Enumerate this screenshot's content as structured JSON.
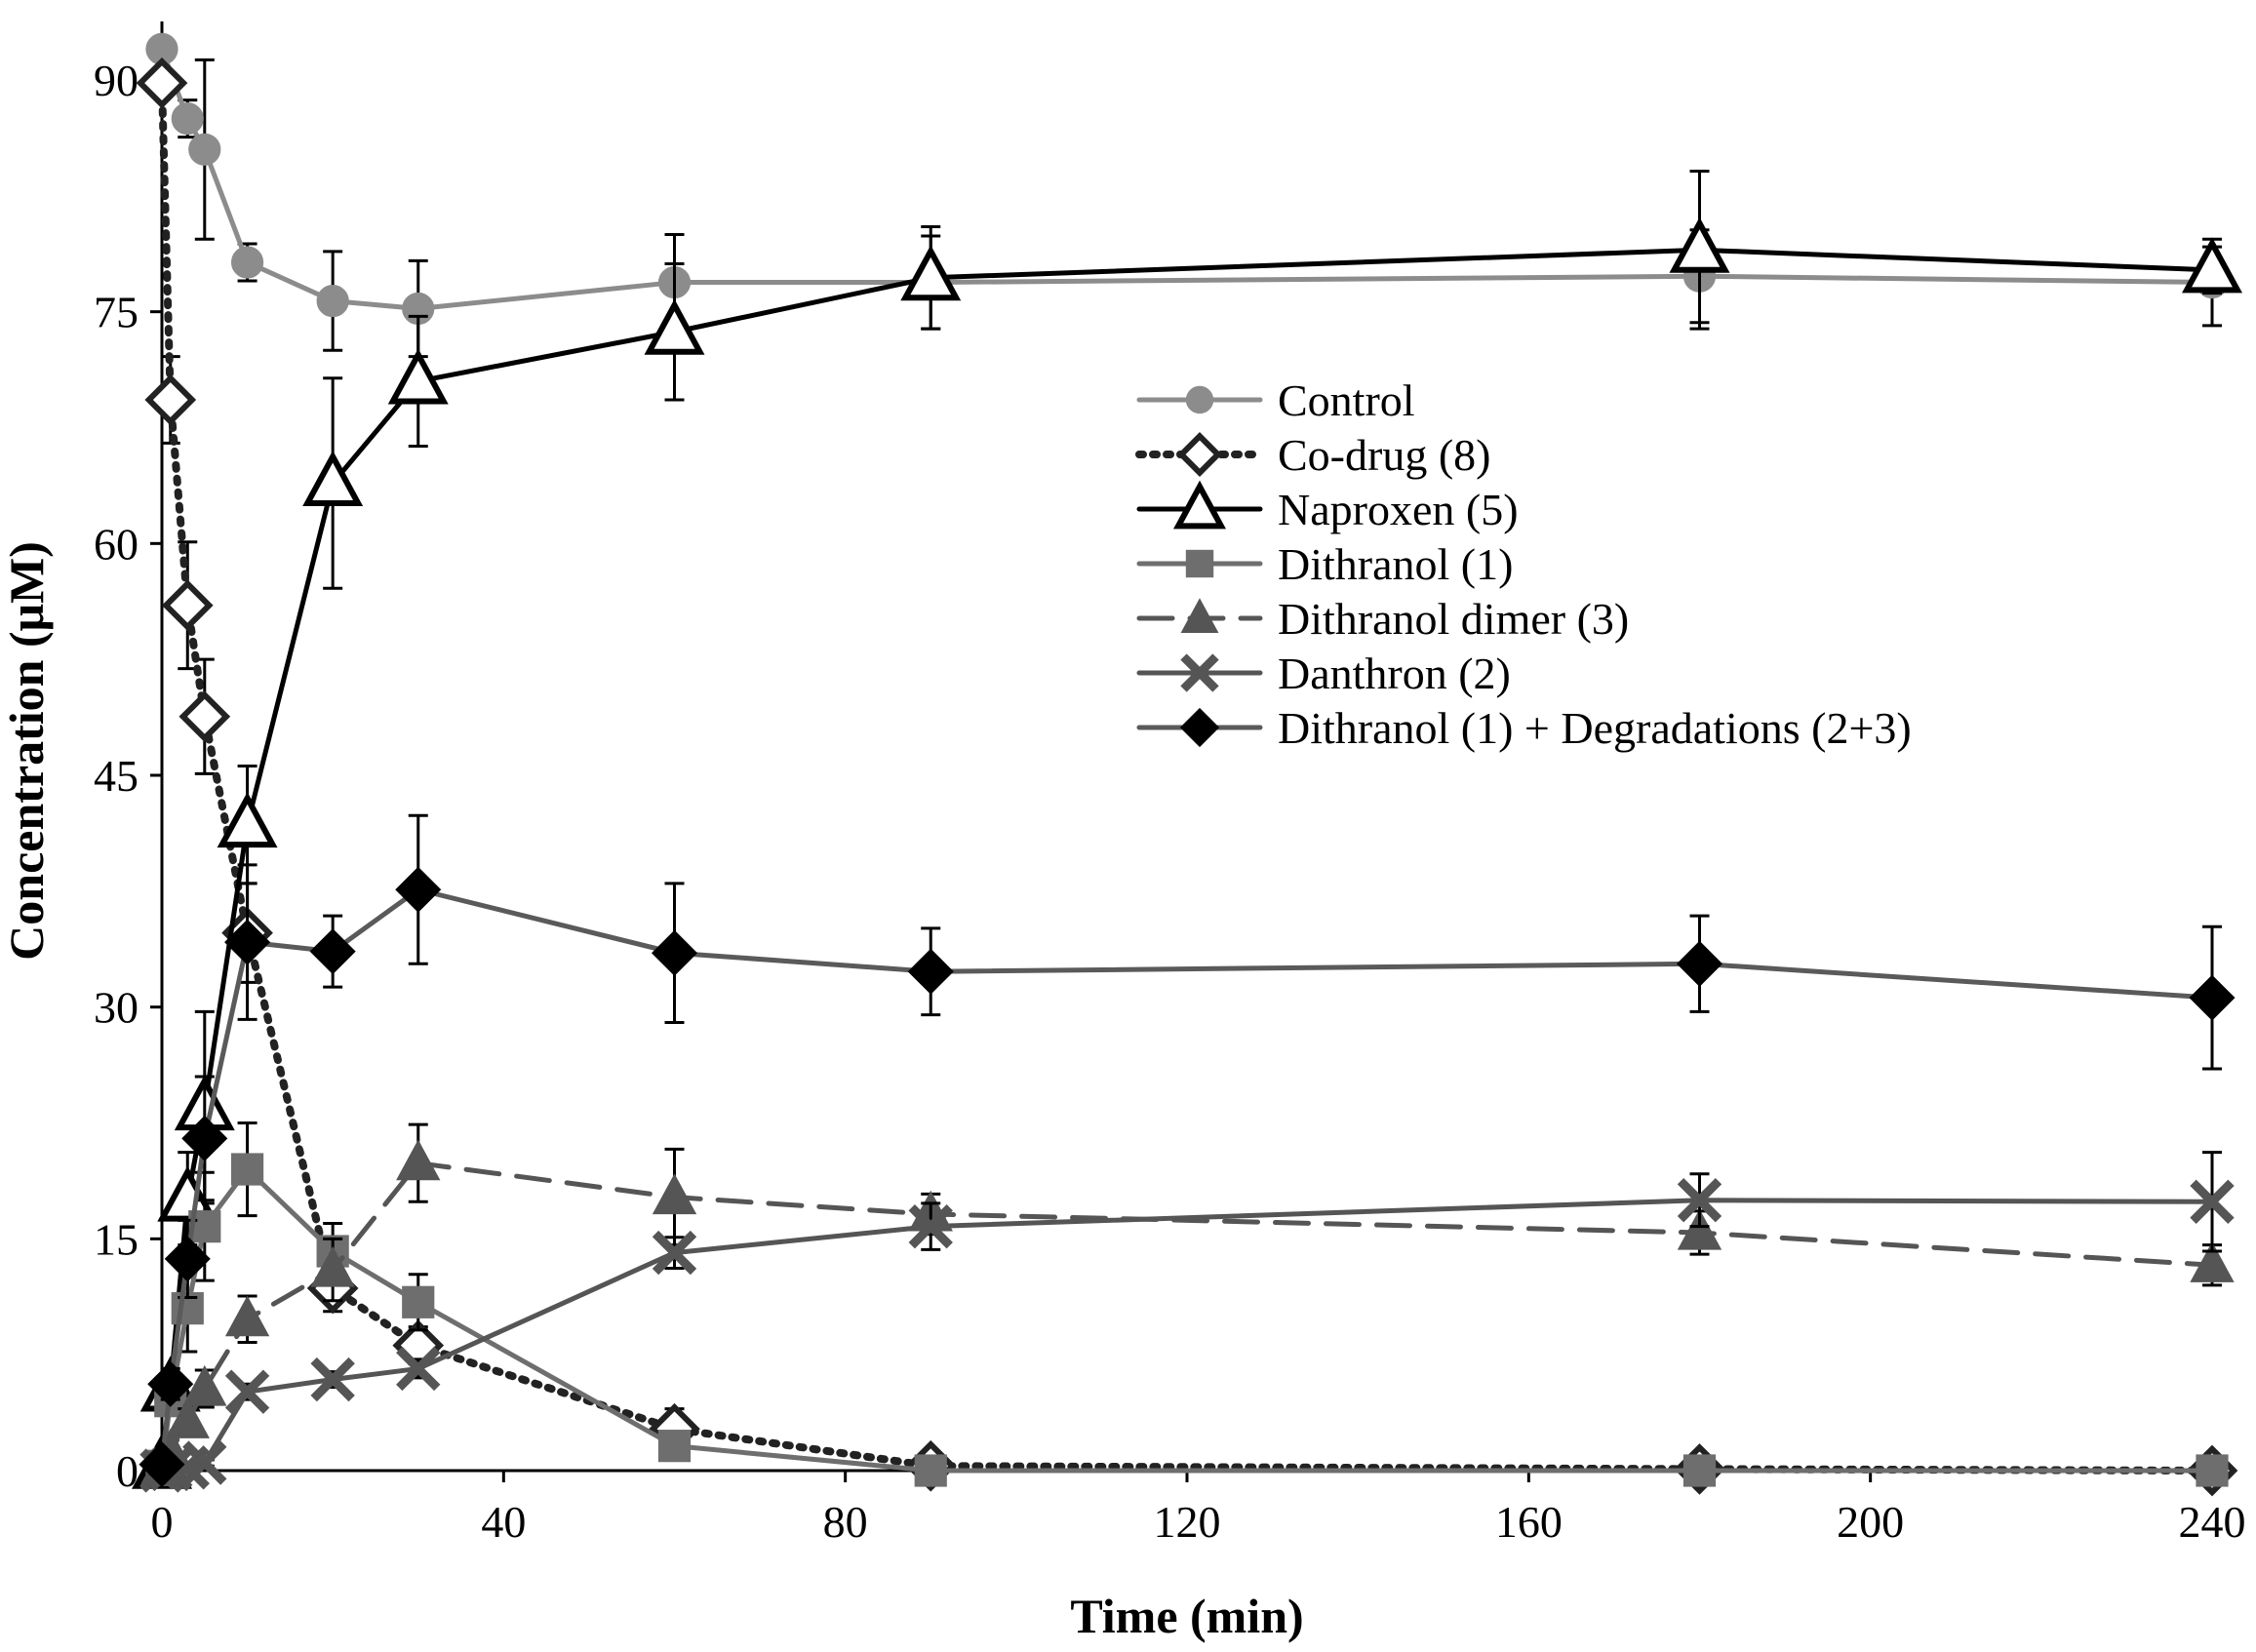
{
  "chart_data": {
    "type": "line",
    "title": "",
    "xlabel": "Time (min)",
    "ylabel": "Concentration (μM)",
    "xlim": [
      0,
      240
    ],
    "ylim": [
      0,
      90
    ],
    "xticks": [
      0,
      40,
      80,
      120,
      160,
      200,
      240
    ],
    "yticks": [
      0,
      15,
      30,
      45,
      60,
      75,
      90
    ],
    "grid": false,
    "legend_position": "center-right",
    "series": [
      {
        "name": "Control",
        "color": "#8c8c8c",
        "dash": "solid",
        "marker": "circle",
        "filled": true,
        "x": [
          0,
          3,
          5,
          10,
          20,
          30,
          60,
          90,
          180,
          240
        ],
        "y": [
          92,
          87.5,
          85.5,
          78.2,
          75.7,
          75.2,
          76.9,
          76.9,
          77.3,
          76.9
        ],
        "err": [
          0,
          1.2,
          5.8,
          1.2,
          3.2,
          3.1,
          3.1,
          3.0,
          3.0,
          2.8
        ]
      },
      {
        "name": "Co-drug (8)",
        "color": "#222222",
        "dash": "dotted",
        "marker": "diamond",
        "filled": false,
        "x": [
          0,
          1,
          3,
          5,
          10,
          20,
          30,
          60,
          90,
          180,
          240
        ],
        "y": [
          89.8,
          69.3,
          56,
          48.8,
          34.8,
          11.8,
          8.1,
          2.7,
          0.3,
          0.1,
          0
        ],
        "err": [
          0,
          2.8,
          4.1,
          3.7,
          3.2,
          1.5,
          1.2,
          1.3,
          0.3,
          0.3,
          0.2
        ]
      },
      {
        "name": "Naproxen (5)",
        "color": "#000000",
        "dash": "solid",
        "marker": "triangle",
        "filled": false,
        "x": [
          0,
          1,
          3,
          5,
          10,
          20,
          30,
          60,
          90,
          180,
          240
        ],
        "y": [
          0.3,
          5.3,
          17.6,
          23.5,
          41.8,
          63.9,
          70.5,
          73.7,
          77.2,
          79,
          77.7
        ],
        "err": [
          0,
          0.8,
          3.0,
          6.2,
          3.8,
          6.8,
          4.2,
          4.4,
          3.3,
          5.1,
          1.5
        ]
      },
      {
        "name": "Dithranol (1)",
        "color": "#6e6e6e",
        "dash": "solid",
        "marker": "square",
        "filled": true,
        "x": [
          0,
          1,
          3,
          5,
          10,
          20,
          30,
          60,
          90,
          180,
          240
        ],
        "y": [
          0.3,
          4.5,
          10.5,
          15.8,
          19.5,
          14.2,
          10.9,
          1.6,
          0,
          0,
          0
        ],
        "err": [
          0,
          0.8,
          2.8,
          3.5,
          3.0,
          1.8,
          1.8,
          0.5,
          0.3,
          0.3,
          0.2
        ]
      },
      {
        "name": "Dithranol dimer (3)",
        "color": "#555555",
        "dash": "dashed",
        "marker": "triangle",
        "filled": true,
        "x": [
          0,
          1,
          3,
          5,
          10,
          20,
          30,
          60,
          90,
          180,
          240
        ],
        "y": [
          0.1,
          1.2,
          3.2,
          5.3,
          9.8,
          13,
          19.9,
          17.7,
          16.6,
          15.4,
          13.3
        ],
        "err": [
          0,
          0.3,
          0.8,
          1.2,
          1.5,
          2.0,
          2.5,
          3.1,
          1.3,
          1.4,
          1.3
        ]
      },
      {
        "name": "Danthron (2)",
        "color": "#555555",
        "dash": "solid",
        "marker": "x",
        "filled": true,
        "x": [
          0,
          1,
          3,
          5,
          10,
          20,
          30,
          60,
          90,
          180,
          240
        ],
        "y": [
          0,
          0.1,
          0.2,
          0.5,
          5.1,
          5.9,
          6.6,
          14.1,
          15.8,
          17.5,
          17.4
        ],
        "err": [
          0,
          0,
          0,
          0.2,
          0.5,
          0.5,
          0.6,
          1.0,
          1.5,
          1.7,
          3.2
        ]
      },
      {
        "name": "Dithranol (1) + Degradations (2+3)",
        "color": "#5a5a5a",
        "dash": "solid",
        "marker": "diamond",
        "filled": true,
        "markerColor": "#000000",
        "x": [
          0,
          1,
          3,
          5,
          10,
          20,
          30,
          60,
          90,
          180,
          240
        ],
        "y": [
          0.4,
          5.6,
          13.7,
          21.5,
          34.2,
          33.6,
          37.6,
          33.5,
          32.3,
          32.8,
          30.6
        ],
        "err": [
          0,
          1.0,
          2.5,
          4.0,
          5.0,
          2.3,
          4.8,
          4.5,
          2.8,
          3.1,
          4.6
        ]
      }
    ]
  }
}
